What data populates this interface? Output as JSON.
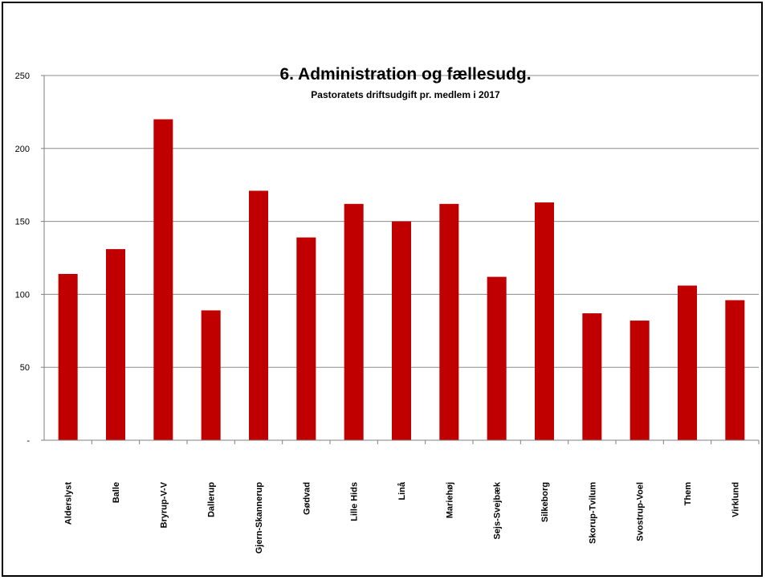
{
  "chart_data": {
    "type": "bar",
    "title": "6. Administration og fællesudg.",
    "subtitle": "Pastoratets driftsudgift pr. medlem i 2017",
    "categories": [
      "Alderslyst",
      "Balle",
      "Bryrup-V-V",
      "Dallerup",
      "Gjern-Skannerup",
      "Gødvad",
      "Lille Hids",
      "Linå",
      "Mariehøj",
      "Sejs-Svejbæk",
      "Silkeborg",
      "Skorup-Tvilum",
      "Svostrup-Voel",
      "Them",
      "Virklund"
    ],
    "values": [
      114,
      131,
      220,
      89,
      171,
      139,
      162,
      150,
      162,
      112,
      163,
      87,
      82,
      106,
      96
    ],
    "ylim": [
      0,
      250
    ],
    "yticks": [
      0,
      50,
      100,
      150,
      200,
      250
    ],
    "ytick_labels": [
      "-",
      "50",
      "100",
      "150",
      "200",
      "250"
    ],
    "bar_color": "#C00000",
    "grid": true,
    "legend": "none"
  }
}
